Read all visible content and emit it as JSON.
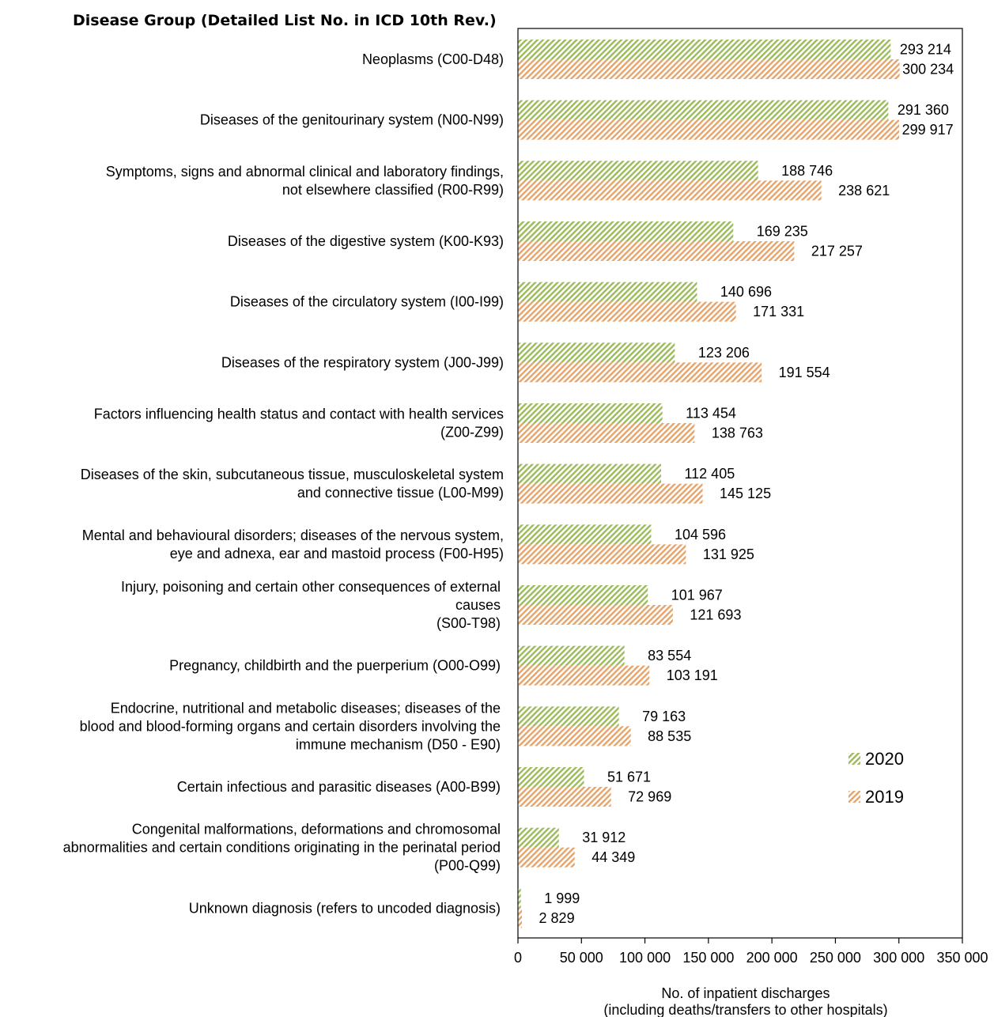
{
  "chart_data": {
    "type": "bar",
    "orientation": "horizontal",
    "title": "Disease Group (Detailed List No. in ICD 10th Rev.)",
    "xlabel": "No. of inpatient discharges",
    "xlabel_line2": "(including deaths/transfers to other hospitals)",
    "xlim": [
      0,
      350000
    ],
    "xticks": [
      {
        "value": 0,
        "label": "0"
      },
      {
        "value": 50000,
        "label": "50 000"
      },
      {
        "value": 100000,
        "label": "100 000"
      },
      {
        "value": 150000,
        "label": "150 000"
      },
      {
        "value": 200000,
        "label": "200 000"
      },
      {
        "value": 250000,
        "label": "250 000"
      },
      {
        "value": 300000,
        "label": "300 000"
      },
      {
        "value": 350000,
        "label": "350 000"
      }
    ],
    "grid": false,
    "legend_position": "right",
    "categories": [
      [
        "Neoplasms (C00-D48)"
      ],
      [
        "Diseases of the genitourinary system (N00-N99)"
      ],
      [
        "Symptoms, signs and abnormal clinical and laboratory findings,",
        "not elsewhere classified (R00-R99)"
      ],
      [
        "Diseases of the digestive system (K00-K93)"
      ],
      [
        "Diseases of the circulatory system (I00-I99)"
      ],
      [
        "Diseases of the respiratory system (J00-J99)"
      ],
      [
        "Factors influencing health status and contact with health services",
        "(Z00-Z99)"
      ],
      [
        "Diseases of the skin, subcutaneous tissue, musculoskeletal system",
        "and connective tissue (L00-M99)"
      ],
      [
        "Mental and behavioural disorders; diseases of the nervous system,",
        "eye and adnexa, ear and mastoid process (F00-H95)"
      ],
      [
        "Injury, poisoning and certain other consequences of external",
        "causes",
        "(S00-T98)"
      ],
      [
        "Pregnancy, childbirth and the puerperium (O00-O99)"
      ],
      [
        "Endocrine, nutritional and metabolic diseases; diseases of the",
        "blood and blood-forming organs and certain disorders involving the",
        "immune mechanism (D50 - E90)"
      ],
      [
        "Certain infectious and parasitic diseases (A00-B99)"
      ],
      [
        "Congenital malformations, deformations and chromosomal",
        "abnormalities and certain conditions originating in the perinatal period",
        "(P00-Q99)"
      ],
      [
        "Unknown diagnosis (refers to uncoded diagnosis)"
      ]
    ],
    "series": [
      {
        "name": "2020",
        "color": "#9bbb59",
        "values": [
          293214,
          291360,
          188746,
          169235,
          140696,
          123206,
          113454,
          112405,
          104596,
          101967,
          83554,
          79163,
          51671,
          31912,
          1999
        ],
        "labels": [
          "293 214",
          "291 360",
          "188 746",
          "169 235",
          "140 696",
          "123 206",
          "113 454",
          "112 405",
          "104 596",
          "101 967",
          "83 554",
          "79 163",
          "51 671",
          "31 912",
          "1 999"
        ]
      },
      {
        "name": "2019",
        "color": "#e6a36a",
        "values": [
          300234,
          299917,
          238621,
          217257,
          171331,
          191554,
          138763,
          145125,
          131925,
          121693,
          103191,
          88535,
          72969,
          44349,
          2829
        ],
        "labels": [
          "300 234",
          "299 917",
          "238 621",
          "217 257",
          "171 331",
          "191 554",
          "138 763",
          "145 125",
          "131 925",
          "121 693",
          "103 191",
          "88 535",
          "72 969",
          "44 349",
          "2 829"
        ]
      }
    ]
  }
}
